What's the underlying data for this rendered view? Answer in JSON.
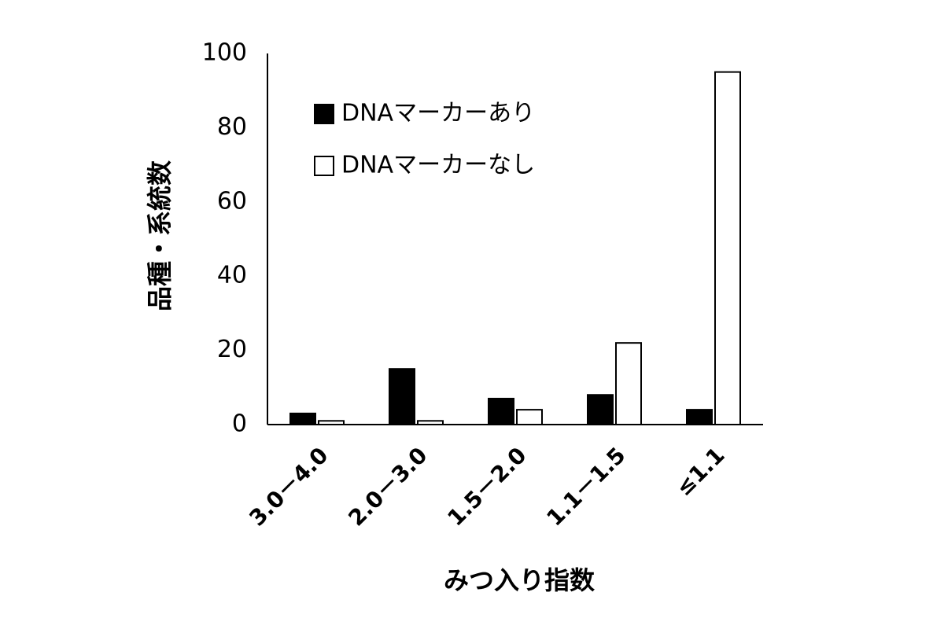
{
  "chart_data": {
    "type": "bar",
    "categories": [
      "3.0－4.0",
      "2.0－3.0",
      "1.5－2.0",
      "1.1－1.5",
      "≤1.1"
    ],
    "series": [
      {
        "name": "DNAマーカーあり",
        "color": "#000000",
        "values": [
          3,
          15,
          7,
          8,
          4
        ]
      },
      {
        "name": "DNAマーカーなし",
        "color": "#ffffff",
        "values": [
          1,
          1,
          4,
          22,
          95
        ]
      }
    ],
    "xlabel": "みつ入り指数",
    "ylabel": "品種・系統数",
    "ylim": [
      0,
      100
    ],
    "yticks": [
      0,
      20,
      40,
      60,
      80,
      100
    ],
    "grid": false
  }
}
